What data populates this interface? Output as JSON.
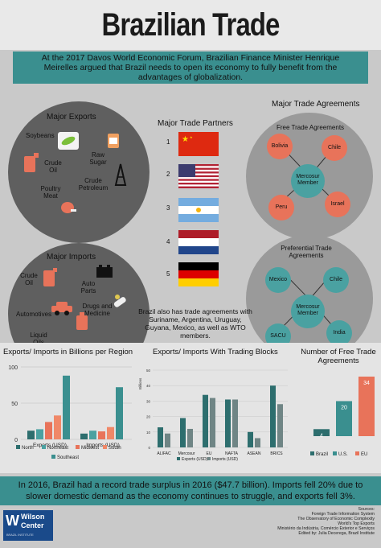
{
  "title": "Brazilian Trade",
  "intro": "At the 2017 Davos World Economic Forum, Brazilian Finance Minister Henrique Meirelles argued that Brazil needs to open its economy to fully benefit from the advantages of globalization.",
  "exports": {
    "title": "Major Exports",
    "items": [
      "Soybeans",
      "Crude Oil",
      "Raw Sugar",
      "Poultry Meat",
      "Crude Petroleum"
    ]
  },
  "imports": {
    "title": "Major Imports",
    "items": [
      "Crude Oil",
      "Auto Parts",
      "Automotives",
      "Drugs and Medicine",
      "Liquid Oils"
    ]
  },
  "partners": {
    "title": "Major Trade Partners",
    "ranks": [
      "1",
      "2",
      "3",
      "4",
      "5"
    ],
    "flags": [
      "china-flag",
      "usa-flag",
      "argentina-flag",
      "netherlands-flag",
      "germany-flag"
    ]
  },
  "agreements": {
    "title": "Major Trade Agreements",
    "free": {
      "title": "Free Trade Agreements",
      "center": "Mercosur Member",
      "nodes": [
        "Bolivia",
        "Chile",
        "Peru",
        "Israel"
      ]
    },
    "preferential": {
      "title": "Preferential Trade Agreements",
      "center": "Mercosur Member",
      "nodes": [
        "Mexico",
        "Chile",
        "SACU",
        "India"
      ]
    },
    "note": "Brazil also has trade agreements with Suriname, Argentina, Uruguay, Guyana, Mexico, as well as WTO members."
  },
  "colors": {
    "teal": "#3a8f8f",
    "dark_teal": "#2d6e6e",
    "orange": "#e8735a",
    "yellow": "#e0c850",
    "grey_dark": "#5f5f5f"
  },
  "chart_data": [
    {
      "type": "bar",
      "title": "Exports/ Imports in Billions per Region",
      "categories": [
        "Exports (USD)",
        "Imports (USD)"
      ],
      "ylim": [
        0,
        100
      ],
      "yticks": [
        "100",
        "50",
        "0"
      ],
      "series": [
        {
          "name": "North",
          "values": [
            12,
            8
          ]
        },
        {
          "name": "Northeast",
          "values": [
            14,
            12
          ]
        },
        {
          "name": "Midwest",
          "values": [
            24,
            11
          ]
        },
        {
          "name": "South",
          "values": [
            33,
            17
          ]
        },
        {
          "name": "Southeast",
          "values": [
            88,
            72
          ]
        }
      ]
    },
    {
      "type": "bar",
      "title": "Exports/ Imports With Trading Blocks",
      "ylabel": "Billions",
      "categories": [
        "ALIFAC",
        "Mercosur",
        "EU",
        "NAFTA",
        "ASEAN",
        "BRICS"
      ],
      "ylim": [
        0,
        50
      ],
      "yticks": [
        "50",
        "40",
        "30",
        "20",
        "10",
        "0"
      ],
      "series": [
        {
          "name": "Exports (USD)",
          "values": [
            13,
            19,
            34,
            31,
            10,
            40
          ]
        },
        {
          "name": "Imports (USD)",
          "values": [
            9,
            12,
            32,
            31,
            6,
            28
          ]
        }
      ]
    },
    {
      "type": "bar",
      "title": "Number of Free Trade Agreements",
      "categories": [
        "Brazil",
        "U.S.",
        "EU"
      ],
      "values": [
        4,
        20,
        34
      ],
      "data_labels": [
        "4",
        "20",
        "34"
      ]
    }
  ],
  "footer": {
    "text": "In 2016, Brazil had a record trade surplus in 2016 ($47.7 billion). Imports fell 20% due to slower domestic demand as the economy continues to struggle, and exports fell 3%.",
    "sources": [
      "Sources:",
      "Foreign Trade Information System",
      "The Observatory of Economic Complexity",
      "World's Top Exports",
      "Ministério da Indústria, Comércio Exterior e Serviços",
      "Edited by: Julia Decerega, Brazil Institute"
    ],
    "logo_line1": "Wilson",
    "logo_line2": "Center",
    "logo_line3": "BRAZIL INSTITUTE"
  }
}
